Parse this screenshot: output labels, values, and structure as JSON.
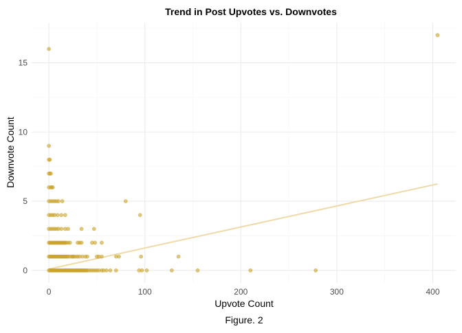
{
  "chart_data": {
    "type": "scatter",
    "title": "Trend in Post Upvotes vs. Downvotes",
    "xlabel": "Upvote Count",
    "ylabel": "Downvote Count",
    "caption": "Figure. 2",
    "xlim": [
      -18,
      424
    ],
    "ylim": [
      -0.9,
      17.9
    ],
    "x_ticks": [
      0,
      100,
      200,
      300,
      400
    ],
    "y_ticks": [
      0,
      5,
      10,
      15
    ],
    "grid": true,
    "legend": "none",
    "colors": {
      "points": "#C9A227",
      "trend": "#EED9A8",
      "grid_major": "#EBEBEB",
      "grid_minor": "#F5F5F5",
      "axis_text": "#4D4D4D"
    },
    "trend_line": {
      "x": [
        0,
        405
      ],
      "y": [
        0.1,
        6.25
      ]
    },
    "points": [
      [
        0,
        16
      ],
      [
        405,
        17
      ],
      [
        80,
        5
      ],
      [
        95,
        4
      ],
      [
        0,
        9
      ],
      [
        0,
        8
      ],
      [
        1,
        8
      ],
      [
        0,
        7
      ],
      [
        1,
        7
      ],
      [
        2,
        7
      ],
      [
        0,
        6
      ],
      [
        2,
        6
      ],
      [
        3,
        6
      ],
      [
        4,
        6
      ],
      [
        0,
        5
      ],
      [
        2,
        5
      ],
      [
        4,
        5
      ],
      [
        6,
        5
      ],
      [
        8,
        5
      ],
      [
        10,
        5
      ],
      [
        14,
        5
      ],
      [
        0,
        4
      ],
      [
        2,
        4
      ],
      [
        4,
        4
      ],
      [
        6,
        4
      ],
      [
        9,
        4
      ],
      [
        13,
        4
      ],
      [
        17,
        4
      ],
      [
        0,
        3
      ],
      [
        2,
        3
      ],
      [
        4,
        3
      ],
      [
        6,
        3
      ],
      [
        8,
        3
      ],
      [
        10,
        3
      ],
      [
        13,
        3
      ],
      [
        17,
        3
      ],
      [
        20,
        3
      ],
      [
        34,
        3
      ],
      [
        47,
        3
      ],
      [
        0,
        2
      ],
      [
        1,
        2
      ],
      [
        2,
        2
      ],
      [
        3,
        2
      ],
      [
        4,
        2
      ],
      [
        5,
        2
      ],
      [
        6,
        2
      ],
      [
        7,
        2
      ],
      [
        8,
        2
      ],
      [
        9,
        2
      ],
      [
        10,
        2
      ],
      [
        11,
        2
      ],
      [
        12,
        2
      ],
      [
        13,
        2
      ],
      [
        14,
        2
      ],
      [
        15,
        2
      ],
      [
        16,
        2
      ],
      [
        17,
        2
      ],
      [
        18,
        2
      ],
      [
        20,
        2
      ],
      [
        22,
        2
      ],
      [
        30,
        2
      ],
      [
        32,
        2
      ],
      [
        34,
        2
      ],
      [
        45,
        2
      ],
      [
        48,
        2
      ],
      [
        55,
        2
      ],
      [
        0,
        1
      ],
      [
        1,
        1
      ],
      [
        2,
        1
      ],
      [
        3,
        1
      ],
      [
        4,
        1
      ],
      [
        5,
        1
      ],
      [
        6,
        1
      ],
      [
        7,
        1
      ],
      [
        8,
        1
      ],
      [
        9,
        1
      ],
      [
        10,
        1
      ],
      [
        11,
        1
      ],
      [
        12,
        1
      ],
      [
        13,
        1
      ],
      [
        14,
        1
      ],
      [
        15,
        1
      ],
      [
        16,
        1
      ],
      [
        17,
        1
      ],
      [
        18,
        1
      ],
      [
        19,
        1
      ],
      [
        20,
        1
      ],
      [
        22,
        1
      ],
      [
        24,
        1
      ],
      [
        25,
        1
      ],
      [
        26,
        1
      ],
      [
        28,
        1
      ],
      [
        30,
        1
      ],
      [
        32,
        1
      ],
      [
        35,
        1
      ],
      [
        38,
        1
      ],
      [
        40,
        1
      ],
      [
        50,
        1
      ],
      [
        52,
        1
      ],
      [
        55,
        1
      ],
      [
        70,
        1
      ],
      [
        73,
        1
      ],
      [
        96,
        1
      ],
      [
        135,
        1
      ],
      [
        0,
        0
      ],
      [
        1,
        0
      ],
      [
        2,
        0
      ],
      [
        3,
        0
      ],
      [
        4,
        0
      ],
      [
        5,
        0
      ],
      [
        6,
        0
      ],
      [
        7,
        0
      ],
      [
        8,
        0
      ],
      [
        9,
        0
      ],
      [
        10,
        0
      ],
      [
        11,
        0
      ],
      [
        12,
        0
      ],
      [
        13,
        0
      ],
      [
        14,
        0
      ],
      [
        15,
        0
      ],
      [
        16,
        0
      ],
      [
        17,
        0
      ],
      [
        18,
        0
      ],
      [
        19,
        0
      ],
      [
        20,
        0
      ],
      [
        21,
        0
      ],
      [
        22,
        0
      ],
      [
        23,
        0
      ],
      [
        24,
        0
      ],
      [
        25,
        0
      ],
      [
        26,
        0
      ],
      [
        27,
        0
      ],
      [
        28,
        0
      ],
      [
        29,
        0
      ],
      [
        30,
        0
      ],
      [
        31,
        0
      ],
      [
        32,
        0
      ],
      [
        33,
        0
      ],
      [
        34,
        0
      ],
      [
        35,
        0
      ],
      [
        36,
        0
      ],
      [
        37,
        0
      ],
      [
        38,
        0
      ],
      [
        39,
        0
      ],
      [
        40,
        0
      ],
      [
        42,
        0
      ],
      [
        44,
        0
      ],
      [
        46,
        0
      ],
      [
        48,
        0
      ],
      [
        50,
        0
      ],
      [
        52,
        0
      ],
      [
        55,
        0
      ],
      [
        57,
        0
      ],
      [
        60,
        0
      ],
      [
        64,
        0
      ],
      [
        70,
        0
      ],
      [
        94,
        0
      ],
      [
        97,
        0
      ],
      [
        102,
        0
      ],
      [
        128,
        0
      ],
      [
        155,
        0
      ],
      [
        210,
        0
      ],
      [
        278,
        0
      ]
    ]
  }
}
